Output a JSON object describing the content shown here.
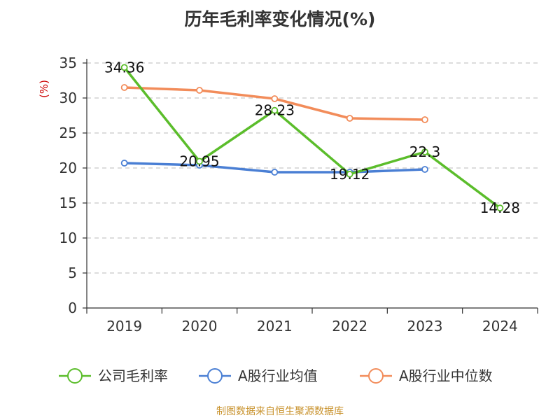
{
  "chart_data": {
    "type": "line",
    "title": "历年毛利率变化情况(%)",
    "ylabel": "(%)",
    "xlabel": "",
    "categories": [
      "2019",
      "2020",
      "2021",
      "2022",
      "2023",
      "2024"
    ],
    "ylim": [
      0,
      35
    ],
    "yticks": [
      0,
      5,
      10,
      15,
      20,
      25,
      30,
      35
    ],
    "grid": true,
    "legend_position": "bottom",
    "series": [
      {
        "name": "公司毛利率",
        "color": "#5bbd2b",
        "values": [
          34.36,
          20.95,
          28.23,
          19.12,
          22.3,
          14.28
        ],
        "labels": [
          "34.36",
          "20.95",
          "28.23",
          "19.12",
          "22.3",
          "14.28"
        ]
      },
      {
        "name": "A股行业均值",
        "color": "#4a7fd4",
        "values": [
          20.7,
          20.4,
          19.4,
          19.4,
          19.8,
          null
        ]
      },
      {
        "name": "A股行业中位数",
        "color": "#f28c5a",
        "values": [
          31.5,
          31.1,
          29.9,
          27.1,
          26.9,
          null
        ]
      }
    ],
    "source": "制图数据来自恒生聚源数据库"
  }
}
